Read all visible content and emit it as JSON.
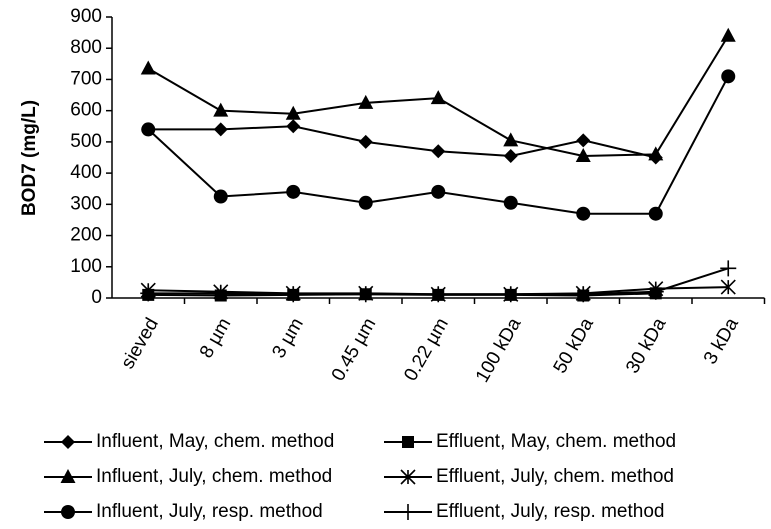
{
  "chart_data": {
    "type": "line",
    "y_label": "BOD7 (mg/L)",
    "categories": [
      "sieved",
      "8 µm",
      "3 µm",
      "0.45 µm",
      "0.22 µm",
      "100 kDa",
      "50 kDa",
      "30 kDa",
      "3 kDa"
    ],
    "ylim": [
      0,
      900
    ],
    "yticks": [
      0,
      100,
      200,
      300,
      400,
      500,
      600,
      700,
      800,
      900
    ],
    "grid": false,
    "legend": "bottom",
    "series": [
      {
        "name": "Influent, May, chem. method",
        "color": "#000000",
        "marker": "diamond",
        "values": [
          540,
          540,
          550,
          500,
          470,
          455,
          505,
          450,
          null
        ]
      },
      {
        "name": "Effluent, May, chem. method",
        "color": "#000000",
        "marker": "square",
        "values": [
          10,
          8,
          10,
          12,
          10,
          10,
          8,
          15,
          null
        ]
      },
      {
        "name": "Influent, July, chem. method",
        "color": "#000000",
        "marker": "triangle",
        "values": [
          735,
          600,
          590,
          625,
          640,
          505,
          455,
          460,
          840
        ]
      },
      {
        "name": "Effluent, July, chem. method",
        "color": "#000000",
        "marker": "asterisk",
        "values": [
          25,
          20,
          15,
          15,
          12,
          12,
          15,
          30,
          35
        ]
      },
      {
        "name": "Influent, July, resp. method",
        "color": "#000000",
        "marker": "circle",
        "values": [
          540,
          325,
          340,
          305,
          340,
          305,
          270,
          270,
          710
        ]
      },
      {
        "name": "Effluent, July, resp. method",
        "color": "#000000",
        "marker": "plus",
        "values": [
          15,
          15,
          12,
          12,
          12,
          12,
          12,
          20,
          95
        ]
      }
    ]
  }
}
